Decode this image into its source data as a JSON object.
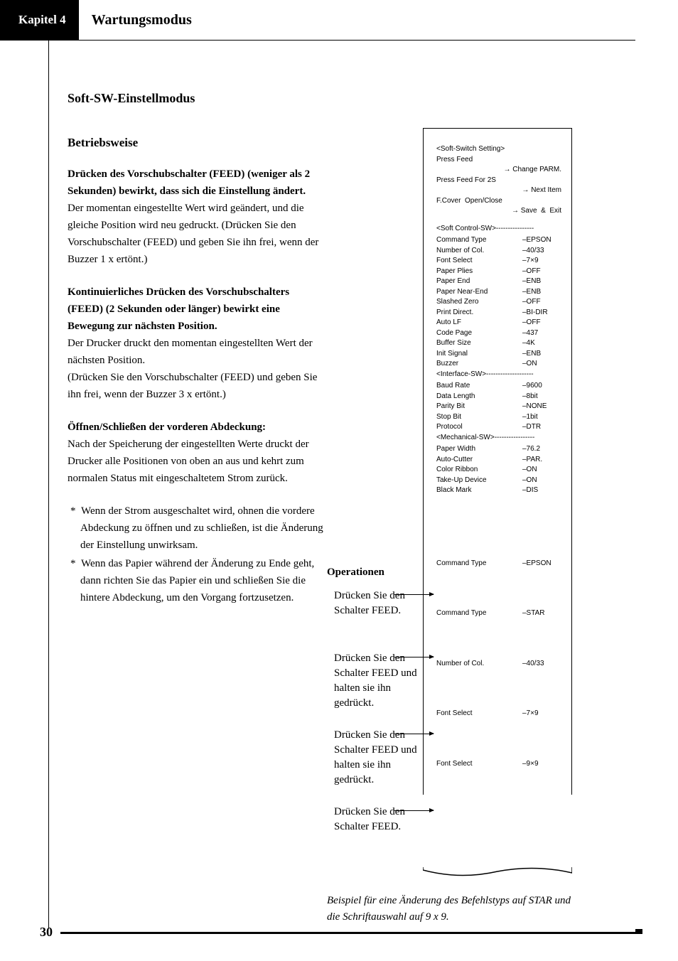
{
  "header": {
    "chapter": "Kapitel 4",
    "title": "Wartungsmodus"
  },
  "section_title": "Soft-SW-Einstellmodus",
  "subsection_title": "Betriebsweise",
  "paragraphs": {
    "p1_bold": "Drücken des Vorschubschalter (FEED) (weniger als 2 Sekunden) bewirkt, dass sich die Einstellung ändert.",
    "p1_text": "Der momentan eingestellte Wert wird geändert, und die gleiche Position wird neu gedruckt. (Drücken Sie den Vorschubschalter (FEED) und geben Sie ihn frei, wenn der Buzzer 1 x ertönt.)",
    "p2_bold": "Kontinuierliches Drücken des Vorschubschalters (FEED) (2 Sekunden oder länger) bewirkt eine Bewegung zur nächsten Position.",
    "p2_text": "Der Drucker druckt den momentan eingestellten Wert der nächsten Position.\n(Drücken Sie den Vorschubschalter (FEED) und geben Sie ihn frei, wenn der Buzzer 3 x ertönt.)",
    "p3_bold": "Öffnen/Schließen der vorderen Abdeckung:",
    "p3_text": "Nach der Speicherung der eingestellten Werte druckt der Drucker alle Positionen von oben an aus und kehrt zum normalen Status mit eingeschaltetem Strom zurück.",
    "bullet1": "Wenn der Strom ausgeschaltet wird, ohnen die vordere Abdeckung zu öffnen und zu schließen, ist die Änderung der Einstellung unwirksam.",
    "bullet2": "Wenn das Papier während der Änderung zu Ende geht, dann richten Sie das Papier ein und schließen Sie die hintere Abdeckung, um den Vorgang fortzusetzen."
  },
  "receipt": {
    "head1": "<Soft-Switch Setting>",
    "head2": "Press Feed",
    "head2r": "→ Change PARM.",
    "head3": "Press Feed For 2S",
    "head3r": "→ Next Item",
    "head4": "F.Cover  Open/Close",
    "head4r": "→ Save  &  Exit",
    "sec1": "<Soft Control-SW>----------------",
    "rows1": [
      [
        "Command Type",
        "–EPSON"
      ],
      [
        "Number of Col.",
        "–40/33"
      ],
      [
        "Font Select",
        "–7×9"
      ],
      [
        "Paper Plies",
        "–OFF"
      ],
      [
        "Paper End",
        "–ENB"
      ],
      [
        "Paper Near-End",
        "–ENB"
      ],
      [
        "Slashed Zero",
        "–OFF"
      ],
      [
        "Print Direct.",
        "–BI-DIR"
      ],
      [
        "Auto LF",
        "–OFF"
      ],
      [
        "Code Page",
        "–437"
      ],
      [
        "Buffer Size",
        "–4K"
      ],
      [
        "Init Signal",
        "–ENB"
      ],
      [
        "Buzzer",
        "–ON"
      ]
    ],
    "sec2": "<Interface-SW>--------------------",
    "rows2": [
      [
        "Baud Rate",
        "–9600"
      ],
      [
        "Data Length",
        "–8bit"
      ],
      [
        "Parity Bit",
        "–NONE"
      ],
      [
        "Stop Bit",
        "–1bit"
      ],
      [
        "Protocol",
        "–DTR"
      ]
    ],
    "sec3": "<Mechanical-SW>-----------------",
    "rows3": [
      [
        "Paper Width",
        "–76.2"
      ],
      [
        "Auto-Cutter",
        "–PAR."
      ],
      [
        "Color Ribbon",
        "–ON"
      ],
      [
        "Take-Up Device",
        "–ON"
      ],
      [
        "Black Mark",
        "–DIS"
      ]
    ],
    "seq": [
      [
        "Command Type",
        "–EPSON"
      ],
      [
        "Command Type",
        "–STAR"
      ],
      [
        "Number of Col.",
        "–40/33"
      ],
      [
        "Font Select",
        "–7×9"
      ],
      [
        "Font Select",
        "–9×9"
      ]
    ]
  },
  "operations": {
    "label": "Operationen",
    "op1": "Drücken Sie den Schalter FEED.",
    "op2": "Drücken Sie den Schalter FEED und halten sie ihn gedrückt.",
    "op3": "Drücken Sie den Schalter FEED und halten sie ihn gedrückt.",
    "op4": "Drücken Sie den Schalter FEED."
  },
  "caption": "Beispiel für eine Änderung des Befehlstyps auf STAR und die Schriftauswahl auf 9 x 9.",
  "page": "30"
}
